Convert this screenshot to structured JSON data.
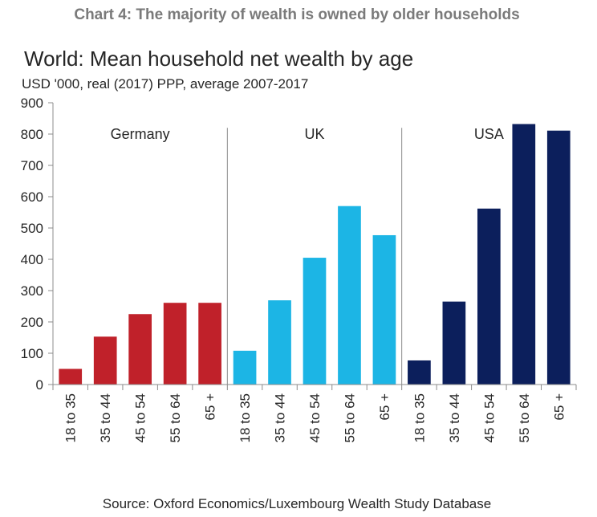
{
  "heading": "Chart 4: The majority of wealth is owned by older households",
  "source": "Source: Oxford Economics/Luxembourg Wealth Study Database",
  "chart_data": {
    "type": "bar",
    "title": "World: Mean household net wealth by age",
    "subtitle": "USD '000, real (2017) PPP, average 2007-2017",
    "xlabel": "",
    "ylabel": "",
    "ylim": [
      0,
      900
    ],
    "yticks": [
      0,
      100,
      200,
      300,
      400,
      500,
      600,
      700,
      800,
      900
    ],
    "grid": false,
    "categories": [
      "18 to 35",
      "35 to 44",
      "45 to 54",
      "55 to 64",
      "65 +"
    ],
    "series": [
      {
        "name": "Germany",
        "color": "#c0212a",
        "values": [
          50,
          153,
          225,
          261,
          261
        ]
      },
      {
        "name": "UK",
        "color": "#1cb5e5",
        "values": [
          108,
          269,
          405,
          570,
          477
        ]
      },
      {
        "name": "USA",
        "color": "#0c1f5c",
        "values": [
          77,
          265,
          562,
          832,
          811
        ]
      }
    ]
  }
}
